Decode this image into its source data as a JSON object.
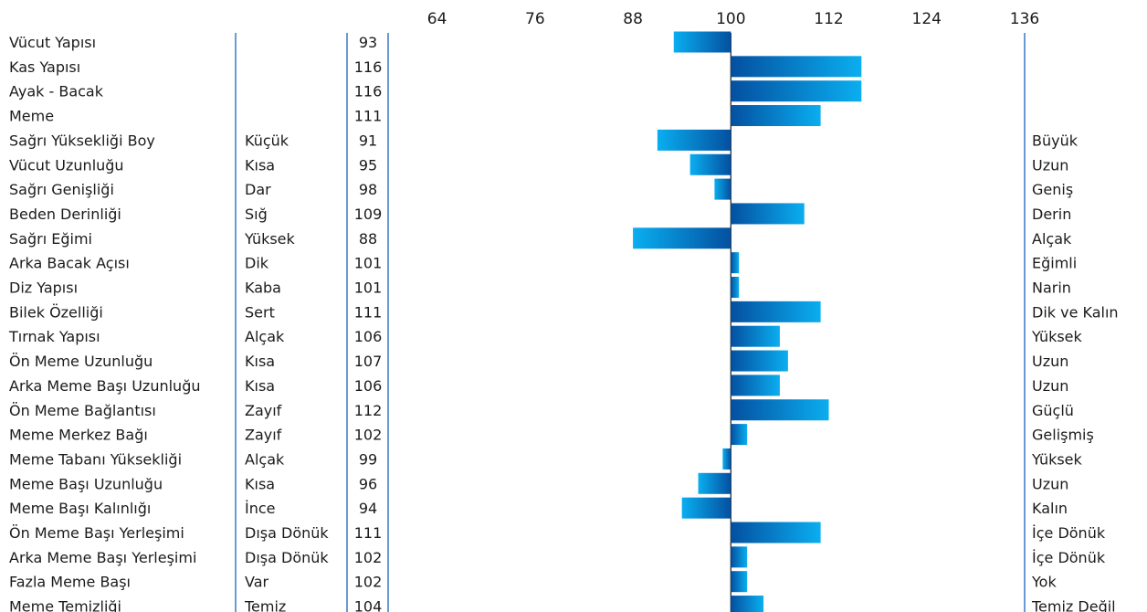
{
  "chart_data": {
    "type": "bar",
    "orientation": "horizontal",
    "baseline": 100,
    "xlim": [
      58,
      136
    ],
    "xticks": [
      64,
      76,
      88,
      100,
      112,
      124,
      136
    ],
    "grid": false,
    "legend": "none",
    "colors": {
      "bar_light": "#0aaef0",
      "bar_dark": "#0450a0",
      "axis": "#2a6fc0",
      "text": "#1b1b1b"
    },
    "rows": [
      {
        "trait": "Vücut Yapısı",
        "low": "",
        "value": 93,
        "high": ""
      },
      {
        "trait": "Kas Yapısı",
        "low": "",
        "value": 116,
        "high": ""
      },
      {
        "trait": "Ayak - Bacak",
        "low": "",
        "value": 116,
        "high": ""
      },
      {
        "trait": "Meme",
        "low": "",
        "value": 111,
        "high": ""
      },
      {
        "trait": "Sağrı Yüksekliği Boy",
        "low": "Küçük",
        "value": 91,
        "high": "Büyük"
      },
      {
        "trait": "Vücut Uzunluğu",
        "low": "Kısa",
        "value": 95,
        "high": "Uzun"
      },
      {
        "trait": "Sağrı Genişliği",
        "low": "Dar",
        "value": 98,
        "high": "Geniş"
      },
      {
        "trait": "Beden Derinliği",
        "low": "Sığ",
        "value": 109,
        "high": "Derin"
      },
      {
        "trait": "Sağrı Eğimi",
        "low": "Yüksek",
        "value": 88,
        "high": "Alçak"
      },
      {
        "trait": "Arka Bacak Açısı",
        "low": "Dik",
        "value": 101,
        "high": "Eğimli"
      },
      {
        "trait": "Diz Yapısı",
        "low": "Kaba",
        "value": 101,
        "high": "Narin"
      },
      {
        "trait": "Bilek Özelliği",
        "low": "Sert",
        "value": 111,
        "high": "Dik ve Kalın"
      },
      {
        "trait": "Tırnak Yapısı",
        "low": "Alçak",
        "value": 106,
        "high": "Yüksek"
      },
      {
        "trait": "Ön Meme Uzunluğu",
        "low": "Kısa",
        "value": 107,
        "high": "Uzun"
      },
      {
        "trait": "Arka Meme Başı Uzunluğu",
        "low": "Kısa",
        "value": 106,
        "high": "Uzun"
      },
      {
        "trait": "Ön Meme Bağlantısı",
        "low": "Zayıf",
        "value": 112,
        "high": "Güçlü"
      },
      {
        "trait": "Meme Merkez Bağı",
        "low": "Zayıf",
        "value": 102,
        "high": "Gelişmiş"
      },
      {
        "trait": "Meme Tabanı Yüksekliği",
        "low": "Alçak",
        "value": 99,
        "high": "Yüksek"
      },
      {
        "trait": "Meme Başı Uzunluğu",
        "low": "Kısa",
        "value": 96,
        "high": "Uzun"
      },
      {
        "trait": "Meme Başı Kalınlığı",
        "low": "İnce",
        "value": 94,
        "high": "Kalın"
      },
      {
        "trait": "Ön Meme Başı Yerleşimi",
        "low": "Dışa Dönük",
        "value": 111,
        "high": "İçe Dönük"
      },
      {
        "trait": "Arka Meme Başı Yerleşimi",
        "low": "Dışa Dönük",
        "value": 102,
        "high": "İçe Dönük"
      },
      {
        "trait": "Fazla Meme Başı",
        "low": "Var",
        "value": 102,
        "high": "Yok"
      },
      {
        "trait": "Meme Temizliği",
        "low": "Temiz",
        "value": 104,
        "high": "Temiz Değil"
      }
    ]
  }
}
